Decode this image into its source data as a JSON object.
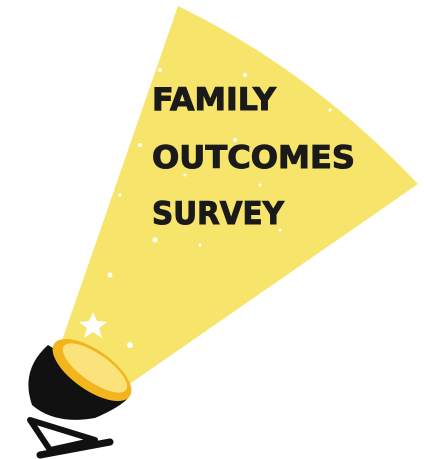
{
  "title": {
    "lines": [
      "FAMILY",
      "OUTCOMES",
      "SURVEY"
    ]
  }
}
